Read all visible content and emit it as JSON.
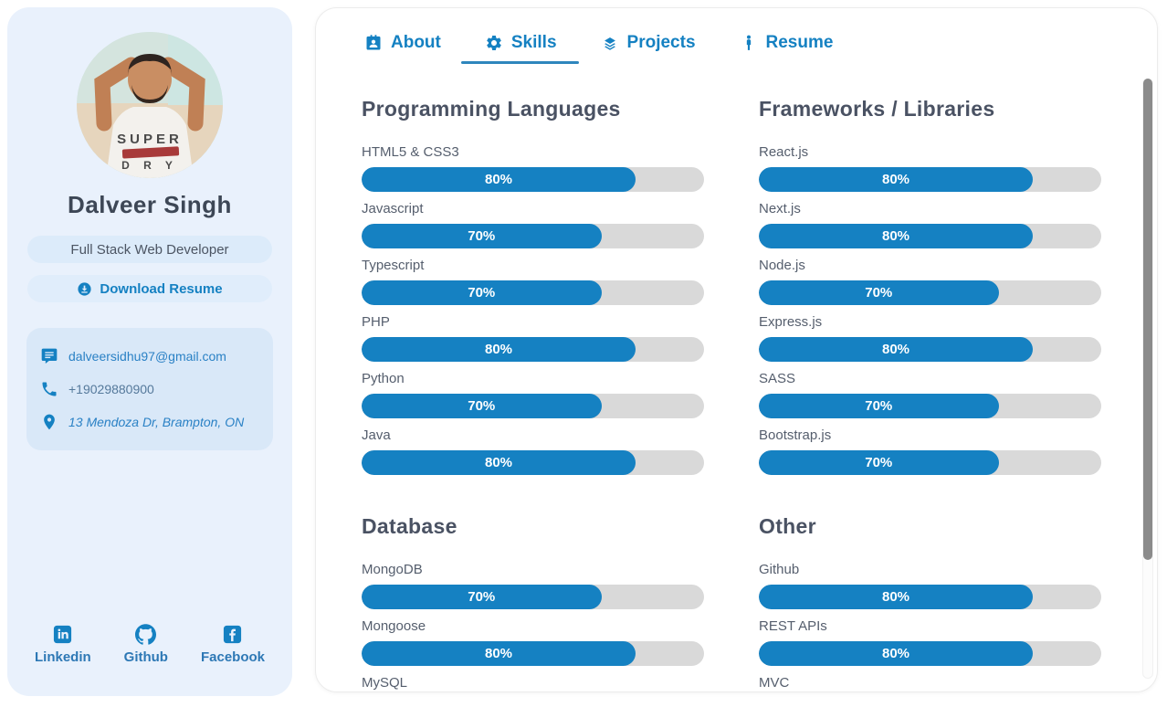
{
  "theme": {
    "accent": "#1581c2",
    "accent_dark": "#2d78b5",
    "progress_track": "#d9d9d9",
    "sidebar_bg": "#e9f1fc",
    "contact_bg": "#d9e8f8"
  },
  "sidebar": {
    "name": "Dalveer Singh",
    "role": "Full Stack Web Developer",
    "download_label": "Download Resume",
    "avatar": {
      "shirt_line1": "SUPER",
      "shirt_line2": "D R Y"
    },
    "contact": [
      {
        "name": "contact-email",
        "icon": "message-icon",
        "text": "dalveersidhu97@gmail.com",
        "style": "link",
        "interactable": true
      },
      {
        "name": "contact-phone",
        "icon": "phone-icon",
        "text": "+19029880900",
        "style": "plain",
        "interactable": true
      },
      {
        "name": "contact-address",
        "icon": "location-icon",
        "text": "13 Mendoza Dr, Brampton, ON",
        "style": "italic",
        "interactable": false
      }
    ],
    "social": [
      {
        "name": "social-linkedin",
        "icon": "linkedin-icon",
        "label": "Linkedin"
      },
      {
        "name": "social-github",
        "icon": "github-icon",
        "label": "Github"
      },
      {
        "name": "social-facebook",
        "icon": "facebook-icon",
        "label": "Facebook"
      }
    ]
  },
  "tabs": [
    {
      "id": "about",
      "label": "About",
      "icon": "about-icon",
      "active": false
    },
    {
      "id": "skills",
      "label": "Skills",
      "icon": "skills-icon",
      "active": true
    },
    {
      "id": "projects",
      "label": "Projects",
      "icon": "projects-icon",
      "active": false
    },
    {
      "id": "resume",
      "label": "Resume",
      "icon": "resume-icon",
      "active": false
    }
  ],
  "chart_data": {
    "type": "bar",
    "title": "Skills progress bars",
    "sections": [
      {
        "title": "Programming Languages",
        "items": [
          {
            "label": "HTML5 & CSS3",
            "percent": 80
          },
          {
            "label": "Javascript",
            "percent": 70
          },
          {
            "label": "Typescript",
            "percent": 70
          },
          {
            "label": "PHP",
            "percent": 80
          },
          {
            "label": "Python",
            "percent": 70
          },
          {
            "label": "Java",
            "percent": 80
          }
        ]
      },
      {
        "title": "Frameworks / Libraries",
        "items": [
          {
            "label": "React.js",
            "percent": 80
          },
          {
            "label": "Next.js",
            "percent": 80
          },
          {
            "label": "Node.js",
            "percent": 70
          },
          {
            "label": "Express.js",
            "percent": 80
          },
          {
            "label": "SASS",
            "percent": 70
          },
          {
            "label": "Bootstrap.js",
            "percent": 70
          }
        ]
      },
      {
        "title": "Database",
        "items": [
          {
            "label": "MongoDB",
            "percent": 70
          },
          {
            "label": "Mongoose",
            "percent": 80
          },
          {
            "label": "MySQL",
            "percent": null
          }
        ]
      },
      {
        "title": "Other",
        "items": [
          {
            "label": "Github",
            "percent": 80
          },
          {
            "label": "REST APIs",
            "percent": 80
          },
          {
            "label": "MVC",
            "percent": null
          }
        ]
      }
    ]
  }
}
